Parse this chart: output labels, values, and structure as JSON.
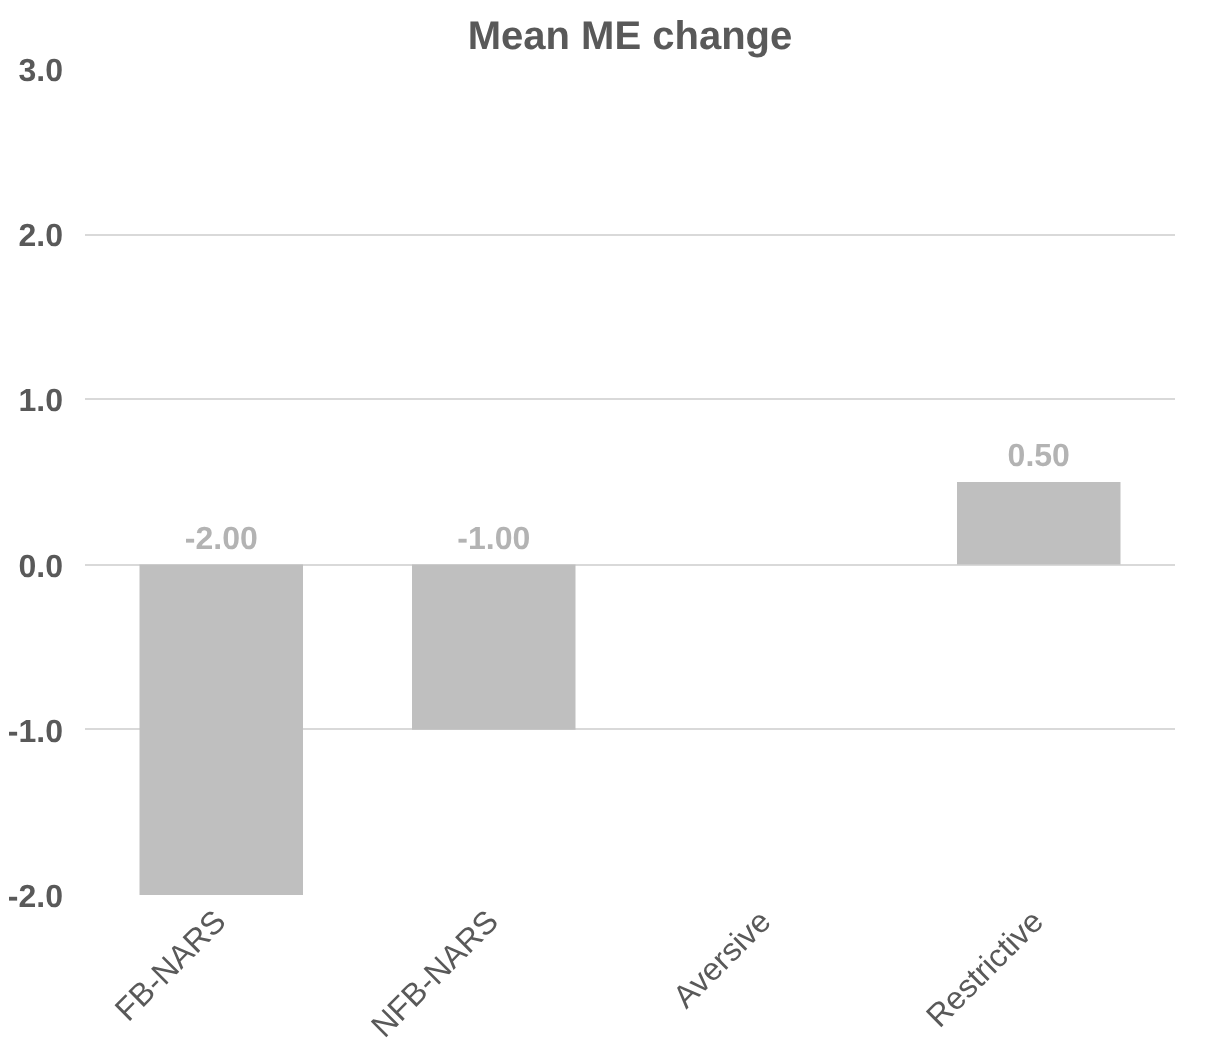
{
  "chart_data": {
    "type": "bar",
    "title": "Mean ME change",
    "categories": [
      "FB-NARS",
      "NFB-NARS",
      "Aversive",
      "Restrictive"
    ],
    "values": [
      -2.0,
      -1.0,
      null,
      0.5
    ],
    "value_labels": [
      "-2.00",
      "-1.00",
      null,
      "0.50"
    ],
    "color": "#bfbfbf",
    "ylim": [
      -2.0,
      3.0
    ],
    "yticks": [
      {
        "value": -2,
        "label": "-2.0"
      },
      {
        "value": -1,
        "label": "-1.0"
      },
      {
        "value": 0,
        "label": "0.0"
      },
      {
        "value": 1,
        "label": "1.0"
      },
      {
        "value": 2,
        "label": "2.0"
      },
      {
        "value": 3,
        "label": "3.0"
      }
    ],
    "grid": "y"
  }
}
